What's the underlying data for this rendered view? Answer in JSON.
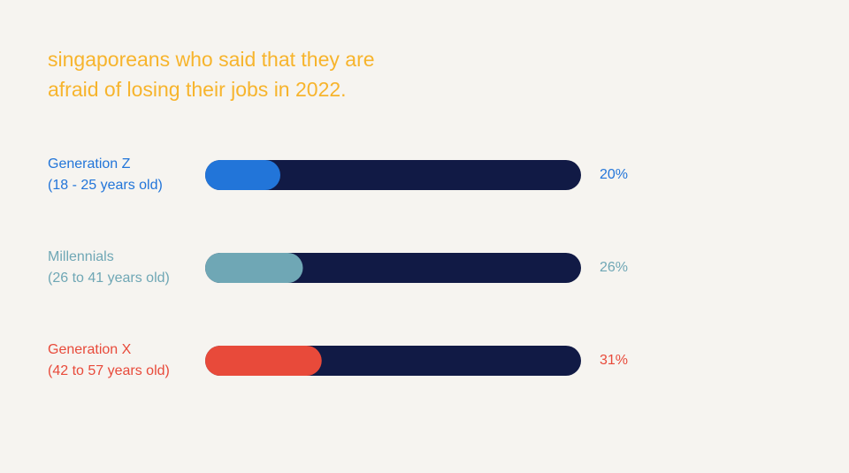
{
  "chart_data": {
    "type": "progress-bar",
    "title": "singaporeans who said that they are\nafraid of losing their jobs in 2022.",
    "categories": [
      "Generation Z\n(18 - 25 years old)",
      "Millennials\n(26 to 41 years old)",
      "Generation X\n(42 to 57 years old)"
    ],
    "values": [
      20,
      26,
      31
    ],
    "value_labels": [
      "20%",
      "26%",
      "31%"
    ],
    "colors": [
      "#2275d9",
      "#6fa7b5",
      "#e84a3a"
    ],
    "track_color": "#111a45",
    "xlim": [
      0,
      100
    ]
  }
}
